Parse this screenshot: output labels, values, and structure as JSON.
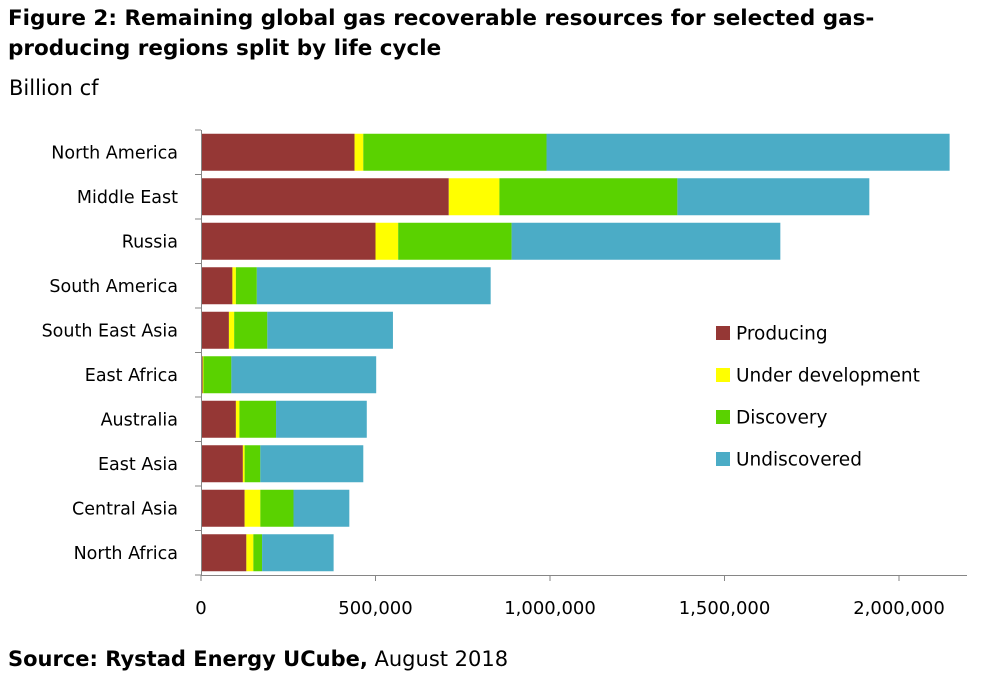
{
  "header": {
    "title": "Figure 2: Remaining global gas recoverable resources for selected gas-producing regions split by life cycle",
    "unit": "Billion cf"
  },
  "footer": {
    "source_label": "Source: Rystad Energy UCube,",
    "source_date": " August 2018"
  },
  "chart_data": {
    "type": "bar",
    "orientation": "horizontal",
    "stacked": true,
    "title": "Figure 2: Remaining global gas recoverable resources for selected gas-producing regions split by life cycle",
    "xlabel": "",
    "ylabel": "Billion cf",
    "xlim": [
      0,
      2200000
    ],
    "xticks": [
      0,
      500000,
      1000000,
      1500000,
      2000000
    ],
    "xtick_labels": [
      "0",
      "500,000",
      "1,000,000",
      "1,500,000",
      "2,000,000"
    ],
    "grid": false,
    "legend_position": "right",
    "categories": [
      "North America",
      "Middle East",
      "Russia",
      "South America",
      "South East Asia",
      "East Africa",
      "Australia",
      "East Asia",
      "Central Asia",
      "North Africa"
    ],
    "series": [
      {
        "name": "Producing",
        "color": "#953735",
        "values": [
          440000,
          710000,
          500000,
          90000,
          80000,
          5000,
          100000,
          120000,
          125000,
          130000
        ]
      },
      {
        "name": "Under development",
        "color": "#ffff00",
        "values": [
          25000,
          145000,
          65000,
          10000,
          15000,
          2000,
          10000,
          5000,
          45000,
          20000
        ]
      },
      {
        "name": "Discovery",
        "color": "#5ad200",
        "values": [
          525000,
          510000,
          325000,
          60000,
          95000,
          80000,
          105000,
          45000,
          95000,
          25000
        ]
      },
      {
        "name": "Undiscovered",
        "color": "#4bacc6",
        "values": [
          1155000,
          550000,
          770000,
          670000,
          360000,
          415000,
          260000,
          295000,
          160000,
          205000
        ]
      }
    ]
  }
}
